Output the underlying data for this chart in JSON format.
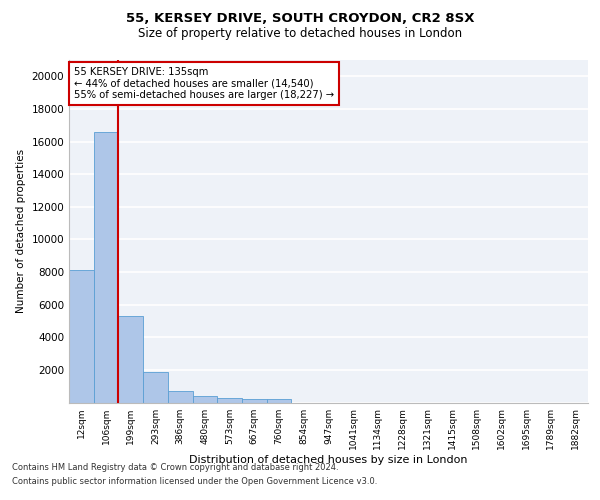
{
  "title1": "55, KERSEY DRIVE, SOUTH CROYDON, CR2 8SX",
  "title2": "Size of property relative to detached houses in London",
  "xlabel": "Distribution of detached houses by size in London",
  "ylabel": "Number of detached properties",
  "bar_labels": [
    "12sqm",
    "106sqm",
    "199sqm",
    "293sqm",
    "386sqm",
    "480sqm",
    "573sqm",
    "667sqm",
    "760sqm",
    "854sqm",
    "947sqm",
    "1041sqm",
    "1134sqm",
    "1228sqm",
    "1321sqm",
    "1415sqm",
    "1508sqm",
    "1602sqm",
    "1695sqm",
    "1789sqm",
    "1882sqm"
  ],
  "bar_values": [
    8100,
    16600,
    5300,
    1850,
    700,
    370,
    280,
    200,
    200,
    0,
    0,
    0,
    0,
    0,
    0,
    0,
    0,
    0,
    0,
    0,
    0
  ],
  "bar_color": "#aec6e8",
  "bar_edge_color": "#5a9fd4",
  "annotation_line1": "55 KERSEY DRIVE: 135sqm",
  "annotation_line2": "← 44% of detached houses are smaller (14,540)",
  "annotation_line3": "55% of semi-detached houses are larger (18,227) →",
  "vline_color": "#cc0000",
  "vline_x": 1.5,
  "ylim": [
    0,
    21000
  ],
  "yticks": [
    0,
    2000,
    4000,
    6000,
    8000,
    10000,
    12000,
    14000,
    16000,
    18000,
    20000
  ],
  "background_color": "#eef2f8",
  "grid_color": "#ffffff",
  "footer1": "Contains HM Land Registry data © Crown copyright and database right 2024.",
  "footer2": "Contains public sector information licensed under the Open Government Licence v3.0."
}
